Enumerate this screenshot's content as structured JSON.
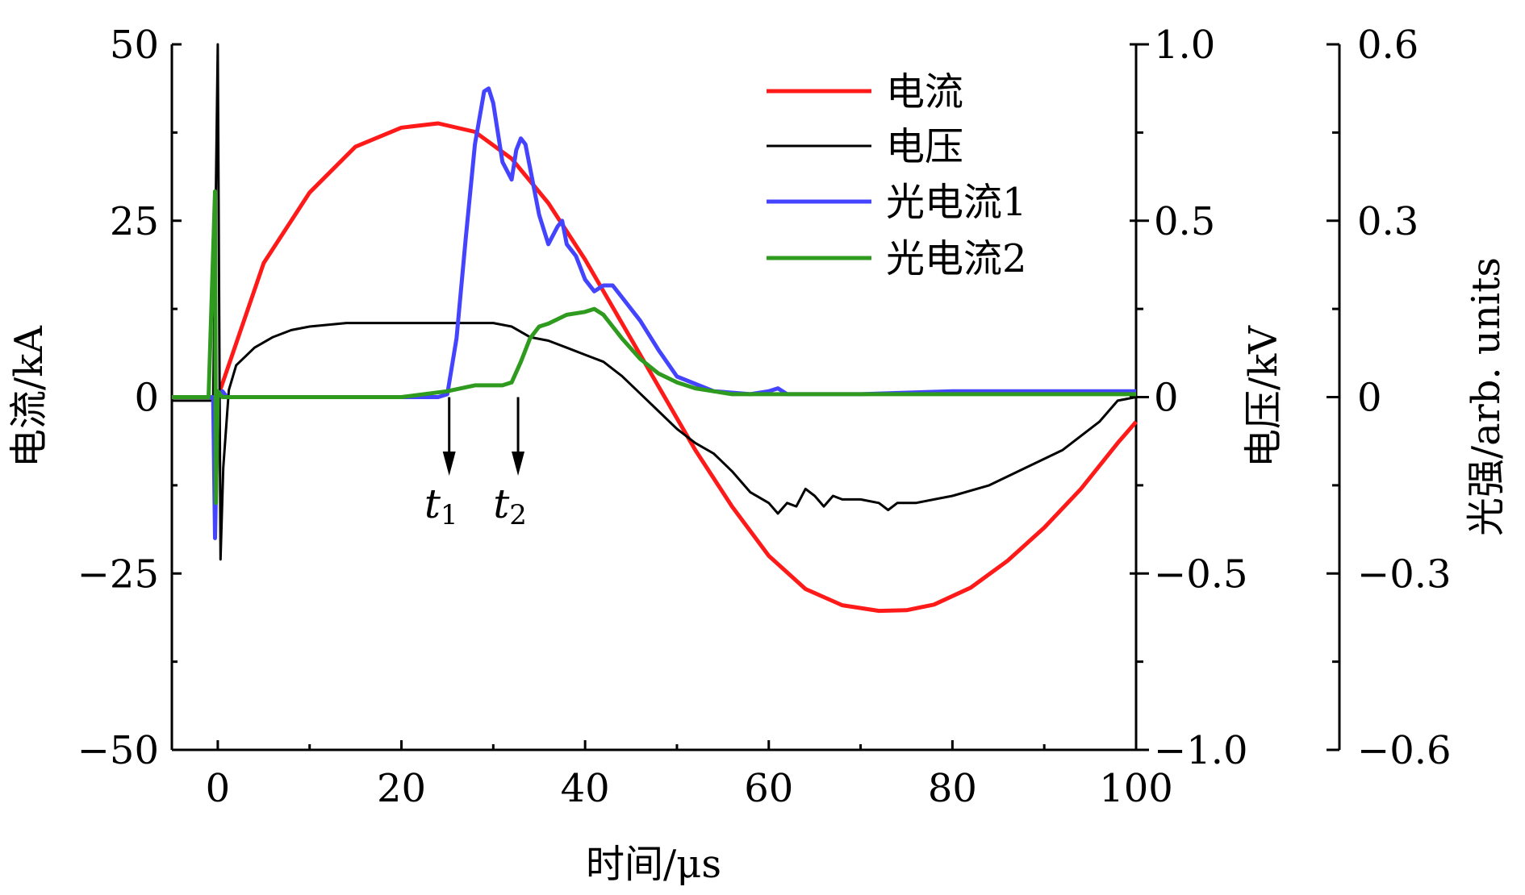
{
  "chart_data": {
    "type": "line",
    "xlabel": "时间/μs",
    "xlim": [
      -5,
      100
    ],
    "x_ticks": [
      "0",
      "20",
      "40",
      "60",
      "80",
      "100"
    ],
    "y_axes": [
      {
        "label": "电流/kA",
        "lim": [
          -50,
          50
        ],
        "ticks": [
          "−50",
          "−25",
          "0",
          "25",
          "50"
        ],
        "side": "left"
      },
      {
        "label": "电压/kV",
        "lim": [
          -1.0,
          1.0
        ],
        "ticks": [
          "−1.0",
          "−0.5",
          "0",
          "0.5",
          "1.0"
        ],
        "side": "right"
      },
      {
        "label": "光强/arb. units",
        "lim": [
          -0.6,
          0.6
        ],
        "ticks": [
          "−0.6",
          "−0.3",
          "0",
          "0.3",
          "0.6"
        ],
        "side": "right-outer"
      }
    ],
    "legend_position": "top-right",
    "series": [
      {
        "name": "电流",
        "color": "#ff1a1a",
        "axis": 0,
        "x": [
          -5,
          0,
          5,
          10,
          15,
          20,
          24,
          28,
          32,
          36,
          40,
          44,
          48,
          52,
          56,
          60,
          64,
          68,
          72,
          75,
          78,
          82,
          86,
          90,
          94,
          98,
          100
        ],
        "y": [
          0,
          0,
          19,
          29,
          35.5,
          38.2,
          38.8,
          37.6,
          33.8,
          27.5,
          19.5,
          10.5,
          1.5,
          -7.5,
          -15.5,
          -22.5,
          -27.2,
          -29.5,
          -30.3,
          -30.2,
          -29.4,
          -27.0,
          -23.2,
          -18.5,
          -13.0,
          -6.5,
          -3.5
        ]
      },
      {
        "name": "电压",
        "color": "#000000",
        "axis": 1,
        "x": [
          -5,
          -0.5,
          0,
          0.3,
          0.6,
          1.2,
          2,
          4,
          6,
          8,
          10,
          14,
          18,
          22,
          26,
          30,
          32,
          34,
          36,
          38,
          40,
          42,
          44,
          46,
          48,
          50,
          52,
          54,
          56,
          58,
          60,
          61,
          62,
          63,
          64,
          65,
          66,
          67,
          68,
          70,
          72,
          73,
          74,
          76,
          78,
          80,
          84,
          88,
          92,
          96,
          98,
          100
        ],
        "y": [
          -0.01,
          -0.01,
          1.0,
          -0.46,
          -0.2,
          0.02,
          0.09,
          0.14,
          0.17,
          0.19,
          0.2,
          0.21,
          0.21,
          0.21,
          0.21,
          0.21,
          0.2,
          0.17,
          0.16,
          0.14,
          0.12,
          0.1,
          0.06,
          0.01,
          -0.04,
          -0.09,
          -0.13,
          -0.16,
          -0.21,
          -0.27,
          -0.3,
          -0.33,
          -0.3,
          -0.31,
          -0.26,
          -0.28,
          -0.31,
          -0.28,
          -0.29,
          -0.29,
          -0.3,
          -0.32,
          -0.3,
          -0.3,
          -0.29,
          -0.28,
          -0.25,
          -0.2,
          -0.15,
          -0.07,
          -0.01,
          0.0
        ]
      },
      {
        "name": "光电流1",
        "color": "#4444ff",
        "axis": 2,
        "x": [
          -5,
          -0.5,
          -0.3,
          0,
          0.5,
          1,
          5,
          10,
          20,
          24,
          25,
          26,
          27,
          28,
          29,
          29.5,
          30,
          31,
          32,
          32.5,
          33,
          33.5,
          34,
          35,
          36,
          37,
          37.5,
          38,
          38.5,
          39,
          40,
          41,
          42,
          43,
          44,
          46,
          48,
          50,
          54,
          58,
          60,
          61,
          62,
          66,
          70,
          80,
          90,
          100
        ],
        "y": [
          0.0,
          0.0,
          -0.24,
          0.0,
          0.01,
          0.0,
          0.0,
          0.0,
          0.0,
          0.0,
          0.005,
          0.1,
          0.27,
          0.43,
          0.52,
          0.525,
          0.5,
          0.4,
          0.37,
          0.42,
          0.44,
          0.43,
          0.39,
          0.31,
          0.26,
          0.29,
          0.3,
          0.26,
          0.25,
          0.24,
          0.2,
          0.18,
          0.19,
          0.19,
          0.17,
          0.13,
          0.08,
          0.035,
          0.01,
          0.005,
          0.01,
          0.015,
          0.005,
          0.005,
          0.005,
          0.01,
          0.01,
          0.01
        ]
      },
      {
        "name": "光电流2",
        "color": "#2e9a1e",
        "axis": 2,
        "x": [
          -5,
          -1,
          -0.3,
          -0.2,
          0,
          0.5,
          1,
          5,
          10,
          20,
          25,
          28,
          31,
          32,
          33,
          34,
          35,
          36,
          38,
          40,
          41,
          42,
          43,
          44,
          46,
          48,
          50,
          52,
          56,
          60,
          66,
          70,
          72,
          74,
          80,
          90,
          100
        ],
        "y": [
          0.0,
          0.0,
          0.35,
          -0.18,
          0.01,
          0.0,
          0.0,
          0.0,
          0.0,
          0.0,
          0.01,
          0.02,
          0.02,
          0.025,
          0.06,
          0.1,
          0.12,
          0.125,
          0.14,
          0.145,
          0.15,
          0.14,
          0.12,
          0.1,
          0.065,
          0.04,
          0.025,
          0.015,
          0.005,
          0.005,
          0.005,
          0.005,
          0.005,
          0.005,
          0.005,
          0.005,
          0.005
        ]
      }
    ],
    "annotations": [
      {
        "text": "t",
        "subscript": "1",
        "x": 25.2
      },
      {
        "text": "t",
        "subscript": "2",
        "x": 32.7
      }
    ]
  }
}
